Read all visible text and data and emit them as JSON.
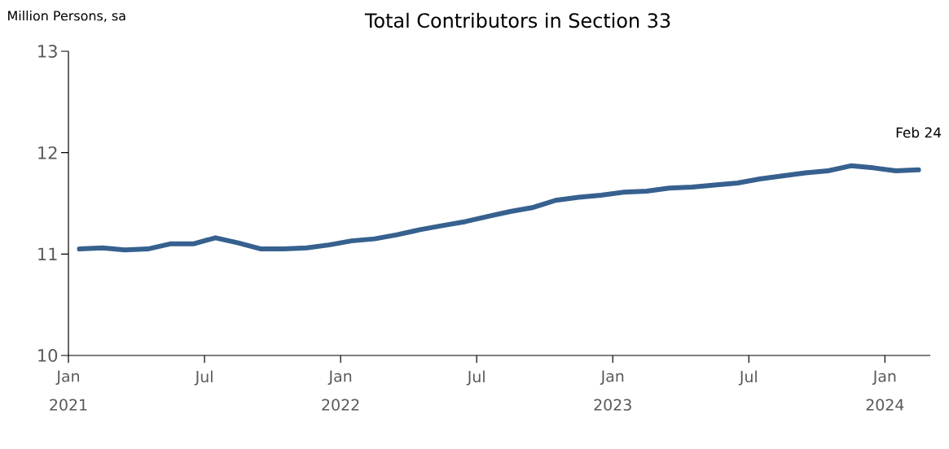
{
  "chart_data": {
    "type": "line",
    "title": "Total Contributors in Section 33",
    "ylabel": "Million Persons, sa",
    "x": [
      "2021-01-16",
      "2021-02-15",
      "2021-03-16",
      "2021-04-16",
      "2021-05-16",
      "2021-06-16",
      "2021-07-16",
      "2021-08-16",
      "2021-09-16",
      "2021-10-16",
      "2021-11-16",
      "2021-12-16",
      "2022-01-16",
      "2022-02-15",
      "2022-03-16",
      "2022-04-16",
      "2022-05-16",
      "2022-06-16",
      "2022-07-16",
      "2022-08-16",
      "2022-09-16",
      "2022-10-16",
      "2022-11-16",
      "2022-12-16",
      "2023-01-16",
      "2023-02-15",
      "2023-03-16",
      "2023-04-16",
      "2023-05-16",
      "2023-06-16",
      "2023-07-16",
      "2023-08-16",
      "2023-09-16",
      "2023-10-16",
      "2023-11-16",
      "2023-12-16",
      "2024-01-16",
      "2024-02-15"
    ],
    "values": [
      11.05,
      11.06,
      11.04,
      11.05,
      11.1,
      11.1,
      11.16,
      11.11,
      11.05,
      11.05,
      11.06,
      11.09,
      11.13,
      11.15,
      11.19,
      11.24,
      11.28,
      11.32,
      11.37,
      11.42,
      11.46,
      11.53,
      11.56,
      11.58,
      11.61,
      11.62,
      11.65,
      11.66,
      11.68,
      11.7,
      11.74,
      11.77,
      11.8,
      11.82,
      11.87,
      11.85,
      11.82,
      11.83
    ],
    "color": "#36618f",
    "xlim": [
      "2021-01-01",
      "2024-03-01"
    ],
    "xticks": [
      {
        "value": "2021-01-01",
        "label": "Jan"
      },
      {
        "value": "2021-07-01",
        "label": "Jul"
      },
      {
        "value": "2022-01-01",
        "label": "Jan"
      },
      {
        "value": "2022-07-01",
        "label": "Jul"
      },
      {
        "value": "2023-01-01",
        "label": "Jan"
      },
      {
        "value": "2023-07-01",
        "label": "Jul"
      },
      {
        "value": "2024-01-01",
        "label": "Jan"
      }
    ],
    "x2lim": [
      "2021-01-01",
      "2024-03-01"
    ],
    "x2ticks": [
      {
        "value": "2021-01-01",
        "label": "2021"
      },
      {
        "value": "2022-01-01",
        "label": "2022"
      },
      {
        "value": "2023-01-01",
        "label": "2023"
      },
      {
        "value": "2024-01-01",
        "label": "2024"
      }
    ],
    "ylim": [
      10,
      13
    ],
    "yticks": [
      10,
      11,
      12,
      13
    ],
    "grid": false,
    "marker": "none",
    "line_style": "solid",
    "annotations": [
      "Feb 24"
    ]
  }
}
